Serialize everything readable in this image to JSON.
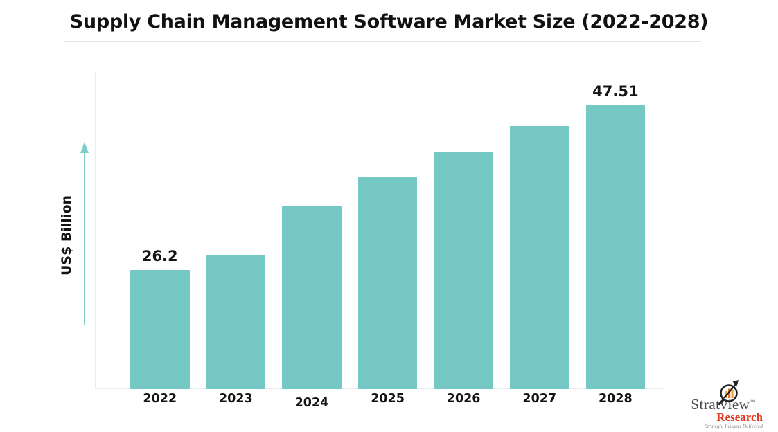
{
  "header": {
    "title": "Supply Chain Management Software Market Size (2022-2028)"
  },
  "chart_data": {
    "type": "bar",
    "title": "Supply Chain Management Software Market Size (2022-2028)",
    "xlabel": "",
    "ylabel": "US$ Billion",
    "categories": [
      "2022",
      "2023",
      "2024",
      "2025",
      "2026",
      "2027",
      "2028"
    ],
    "values": [
      26.2,
      28.1,
      34.5,
      38.3,
      41.5,
      44.8,
      47.51
    ],
    "value_labels": [
      "26.2",
      "",
      "",
      "",
      "",
      "",
      "47.51"
    ],
    "grid": false,
    "legend": "none",
    "yticks": [],
    "non_zero_baseline": true,
    "colors": {
      "bar": "#76c8c4",
      "axis_arrow": "#7fcdc9",
      "axis_line": "#e7edee",
      "label_text": "#141414"
    }
  },
  "branding": {
    "name": "Stratview",
    "trademark": "™",
    "sub_name": "Research",
    "tagline": "Strategic Insights Delivered",
    "colors": {
      "name_text": "#45484b",
      "sub_name_text": "#e2371d",
      "tagline_text": "#8f8f8f",
      "icon_orange": "#f1a33a",
      "icon_orange_dark": "#e8751a",
      "icon_dark": "#222222"
    }
  }
}
